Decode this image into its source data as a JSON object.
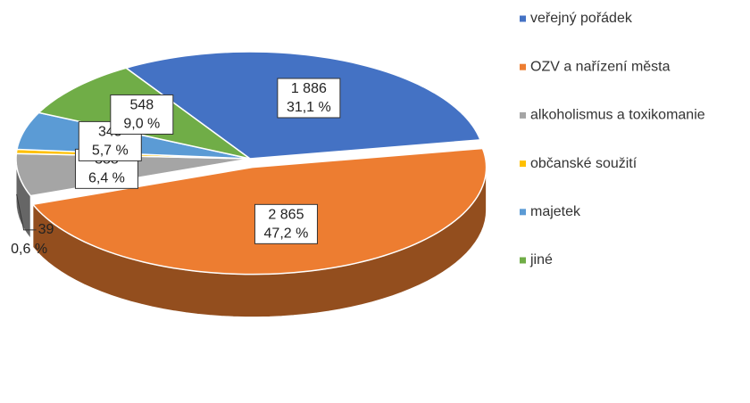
{
  "chart_data": {
    "type": "pie3d",
    "categories": [
      "veřejný pořádek",
      "OZV a nařízení města",
      "alkoholismus a toxikomanie",
      "občanské soužití",
      "majetek",
      "jiné"
    ],
    "values": [
      1886,
      2865,
      388,
      39,
      345,
      548
    ],
    "value_labels": [
      "1 886",
      "2 865",
      "388",
      "39",
      "345",
      "548"
    ],
    "percent_labels": [
      "31,1 %",
      "47,2 %",
      "6,4 %",
      "0,6 %",
      "5,7 %",
      "9,0 %"
    ],
    "colors": [
      "#4472c4",
      "#ed7d31",
      "#a5a5a5",
      "#ffc000",
      "#5b9bd5",
      "#70ad47"
    ],
    "legend": "right"
  }
}
